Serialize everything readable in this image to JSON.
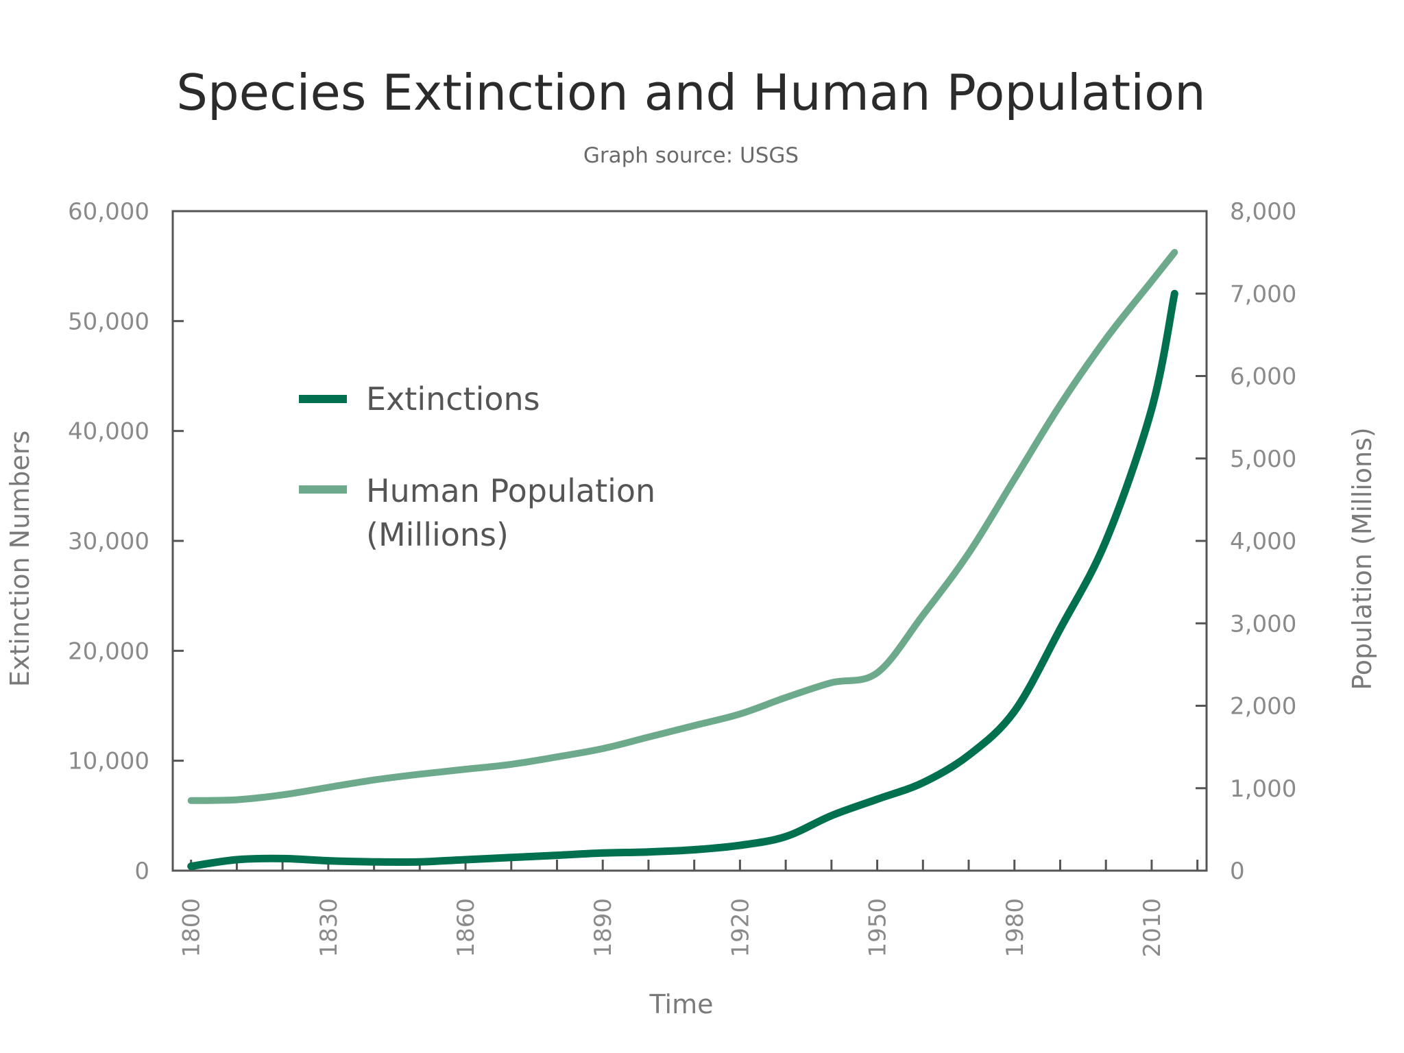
{
  "chart_data": {
    "type": "line",
    "title": "Species Extinction and Human Population",
    "subtitle": "Graph source: USGS",
    "xlabel": "Time",
    "ylabel_left": "Extinction Numbers",
    "ylabel_right": "Population (Millions)",
    "xlim": [
      1796,
      2022
    ],
    "x_ticks": [
      1800,
      1830,
      1860,
      1890,
      1920,
      1950,
      1980,
      2010
    ],
    "ylim_left": [
      0,
      60000
    ],
    "y_ticks_left": [
      0,
      10000,
      20000,
      30000,
      40000,
      50000,
      60000
    ],
    "y_tick_labels_left": [
      "0",
      "10,000",
      "20,000",
      "30,000",
      "40,000",
      "50,000",
      "60,000"
    ],
    "ylim_right": [
      0,
      8000
    ],
    "y_ticks_right": [
      0,
      1000,
      2000,
      3000,
      4000,
      5000,
      6000,
      7000,
      8000
    ],
    "y_tick_labels_right": [
      "0",
      "1,000",
      "2,000",
      "3,000",
      "4,000",
      "5,000",
      "6,000",
      "7,000",
      "8,000"
    ],
    "grid": false,
    "legend": "upper-left",
    "series": [
      {
        "name": "Extinctions",
        "axis": "left",
        "color": "#00704f",
        "x": [
          1800,
          1810,
          1820,
          1830,
          1840,
          1850,
          1860,
          1870,
          1880,
          1890,
          1900,
          1910,
          1920,
          1930,
          1940,
          1950,
          1960,
          1970,
          1980,
          1990,
          2000,
          2010,
          2015
        ],
        "values": [
          400,
          1000,
          1100,
          900,
          800,
          800,
          1000,
          1200,
          1400,
          1600,
          1700,
          1900,
          2300,
          3100,
          5000,
          6500,
          8000,
          10500,
          14500,
          22000,
          30000,
          42000,
          52500
        ]
      },
      {
        "name": "Human Population (Millions)",
        "axis": "right",
        "color": "#6daa8b",
        "x": [
          1800,
          1810,
          1820,
          1830,
          1840,
          1850,
          1860,
          1870,
          1880,
          1890,
          1900,
          1910,
          1920,
          1930,
          1940,
          1950,
          1960,
          1970,
          1980,
          1990,
          2000,
          2010,
          2015
        ],
        "values": [
          850,
          860,
          920,
          1010,
          1100,
          1170,
          1230,
          1290,
          1380,
          1480,
          1620,
          1760,
          1900,
          2100,
          2280,
          2400,
          3100,
          3850,
          4750,
          5650,
          6450,
          7150,
          7500
        ]
      }
    ]
  }
}
